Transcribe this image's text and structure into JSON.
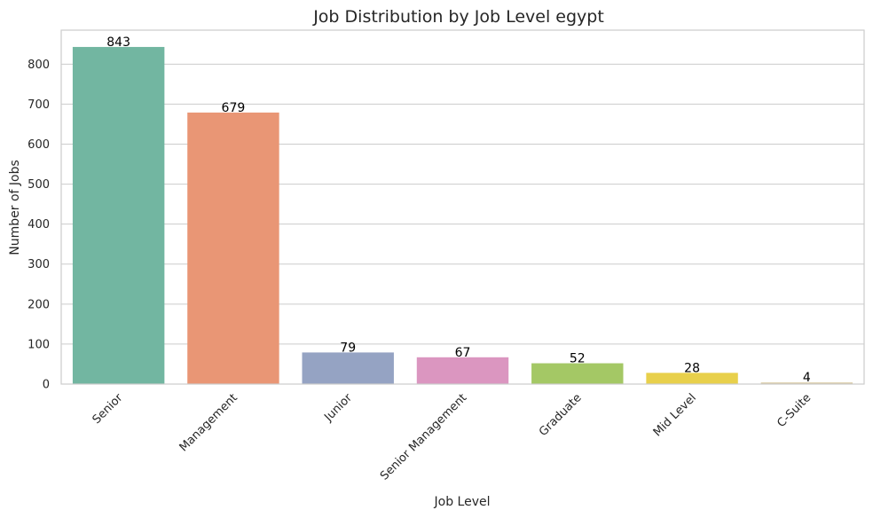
{
  "chart_data": {
    "type": "bar",
    "title": "Job Distribution by Job Level egypt",
    "xlabel": "Job Level",
    "ylabel": "Number of Jobs",
    "categories": [
      "Senior",
      "Management",
      "Junior",
      "Senior Management",
      "Graduate",
      "Mid Level",
      "C-Suite"
    ],
    "values": [
      843,
      679,
      79,
      67,
      52,
      28,
      4
    ],
    "value_labels": [
      "843",
      "679",
      "79",
      "67",
      "52",
      "28",
      "4"
    ],
    "colors": [
      "#72b6a1",
      "#e99675",
      "#95a3c3",
      "#db96c0",
      "#a4c865",
      "#e8d04b",
      "#d9c9a3"
    ],
    "ylim": [
      0,
      885
    ],
    "yticks": [
      0,
      100,
      200,
      300,
      400,
      500,
      600,
      700,
      800
    ],
    "ytick_labels": [
      "0",
      "100",
      "200",
      "300",
      "400",
      "500",
      "600",
      "700",
      "800"
    ],
    "grid": "horizontal",
    "x_tick_rotation": "45°"
  }
}
